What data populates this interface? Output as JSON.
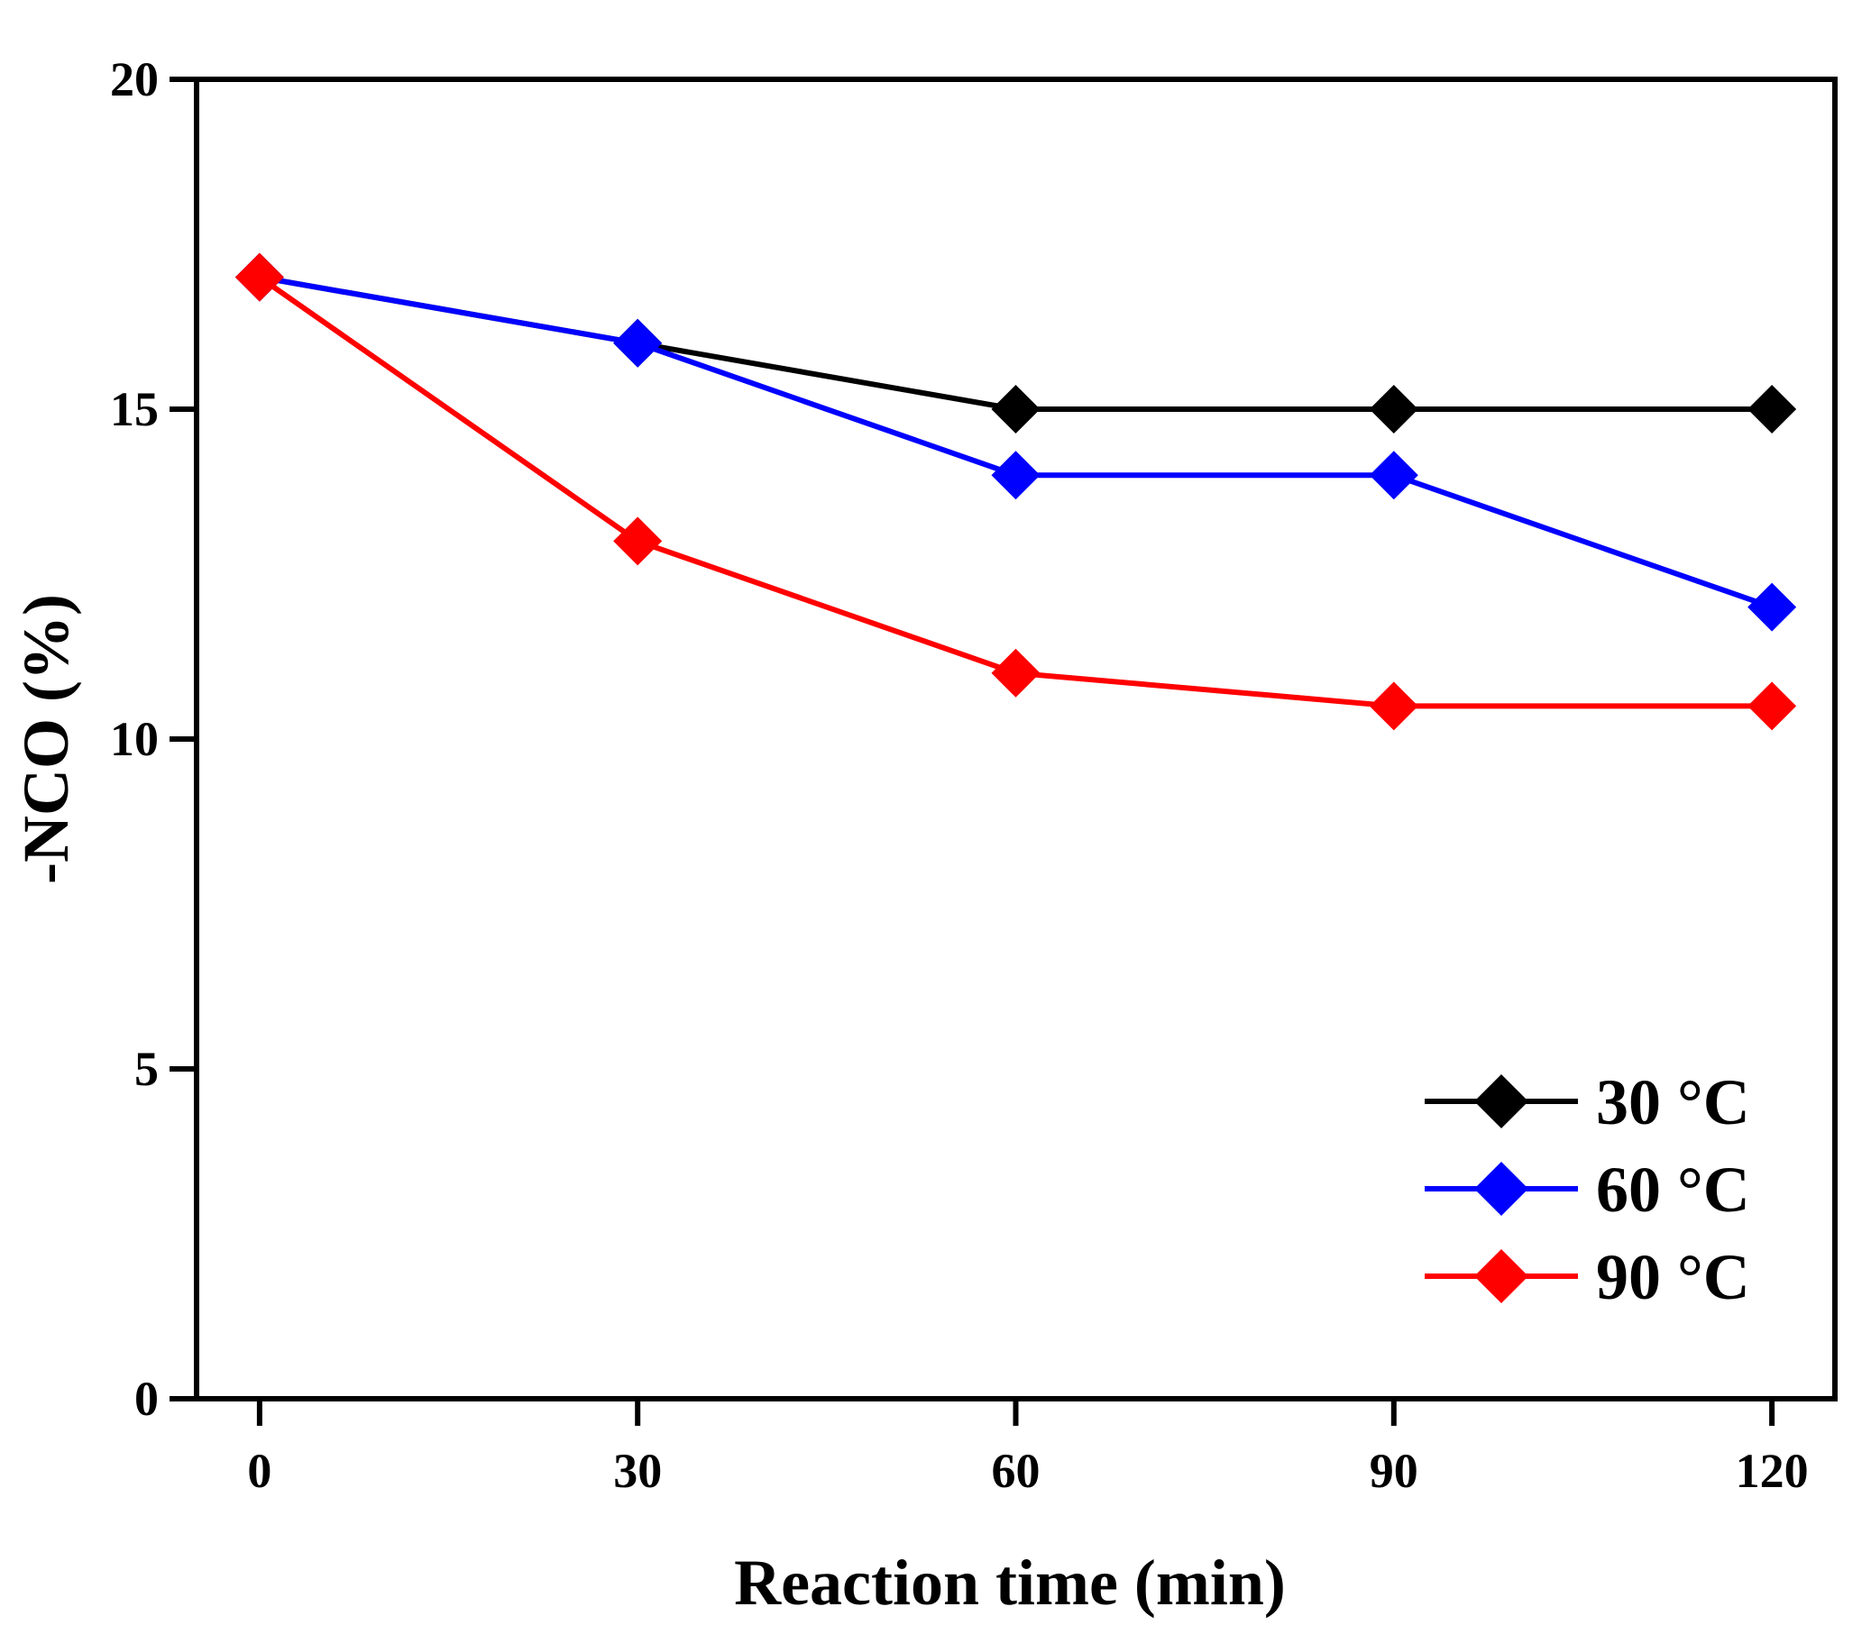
{
  "chart_data": {
    "type": "line",
    "title": "",
    "xlabel": "Reaction time (min)",
    "ylabel": "-NCO (%)",
    "x": [
      0,
      30,
      60,
      90,
      120
    ],
    "xlim": [
      -5,
      125
    ],
    "ylim": [
      0,
      20
    ],
    "xticks": [
      0,
      30,
      60,
      90,
      120
    ],
    "yticks": [
      0,
      5,
      10,
      15,
      20
    ],
    "grid": false,
    "legend_position": "bottom-right",
    "marker": "diamond",
    "series": [
      {
        "name": "30 °C",
        "color": "#000000",
        "values": [
          17,
          16,
          15,
          15,
          15
        ]
      },
      {
        "name": "60 °C",
        "color": "#0000ff",
        "values": [
          17,
          16,
          14,
          14,
          12
        ]
      },
      {
        "name": "90 °C",
        "color": "#ff0000",
        "values": [
          17,
          13,
          11,
          10.5,
          10.5
        ]
      }
    ]
  }
}
